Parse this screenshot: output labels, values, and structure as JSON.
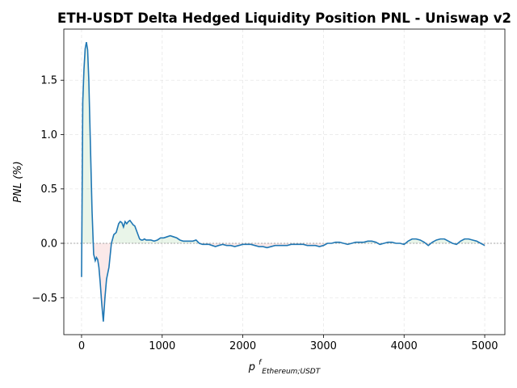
{
  "chart_data": {
    "type": "line",
    "title": "ETH-USDT Delta Hedged Liquidity Position PNL - Uniswap v2",
    "xlabel_main": "p",
    "xlabel_sup": "f",
    "xlabel_sub": "Ethereum;USDT",
    "ylabel": "PNL (%)",
    "xlim": [
      -220,
      5250
    ],
    "ylim": [
      -0.84,
      1.97
    ],
    "xticks": [
      0,
      1000,
      2000,
      3000,
      4000,
      5000
    ],
    "xtick_labels": [
      "0",
      "1000",
      "2000",
      "3000",
      "4000",
      "5000"
    ],
    "yticks": [
      -0.5,
      0.0,
      0.5,
      1.0,
      1.5
    ],
    "ytick_labels": [
      "−0.5",
      "0.0",
      "0.5",
      "1.0",
      "1.5"
    ],
    "grid": true,
    "zero_line": 0,
    "colors": {
      "line": "#1f77b4",
      "fill_positive": "#2ca02c",
      "fill_negative": "#d62728",
      "grid": "#b0b0b0",
      "zero_line": "#888888"
    },
    "series": [
      {
        "x": [
          0,
          15,
          30,
          45,
          60,
          75,
          90,
          110,
          130,
          150,
          170,
          185,
          200,
          215,
          230,
          250,
          270,
          290,
          310,
          340,
          370,
          400,
          430,
          460,
          480,
          500,
          520,
          540,
          560,
          580,
          600,
          620,
          640,
          660,
          680,
          700,
          720,
          740,
          760,
          780,
          800,
          830,
          860,
          900,
          940,
          980,
          1020,
          1060,
          1100,
          1140,
          1180,
          1220,
          1260,
          1300,
          1340,
          1380,
          1420,
          1460,
          1500,
          1540,
          1580,
          1620,
          1660,
          1700,
          1750,
          1800,
          1850,
          1900,
          1950,
          2000,
          2050,
          2100,
          2150,
          2200,
          2250,
          2300,
          2350,
          2400,
          2450,
          2500,
          2550,
          2600,
          2650,
          2700,
          2750,
          2800,
          2850,
          2900,
          2950,
          3000,
          3050,
          3100,
          3150,
          3200,
          3250,
          3300,
          3350,
          3400,
          3450,
          3500,
          3550,
          3600,
          3650,
          3700,
          3750,
          3800,
          3850,
          3900,
          3950,
          4000,
          4050,
          4100,
          4150,
          4200,
          4250,
          4300,
          4350,
          4400,
          4450,
          4500,
          4550,
          4600,
          4650,
          4700,
          4750,
          4800,
          4850,
          4900,
          4950,
          5000
        ],
        "y": [
          -0.31,
          1.3,
          1.6,
          1.79,
          1.85,
          1.78,
          1.5,
          0.9,
          0.3,
          -0.1,
          -0.16,
          -0.13,
          -0.15,
          -0.22,
          -0.35,
          -0.55,
          -0.72,
          -0.5,
          -0.33,
          -0.22,
          0.0,
          0.08,
          0.1,
          0.18,
          0.2,
          0.19,
          0.15,
          0.2,
          0.18,
          0.2,
          0.21,
          0.19,
          0.17,
          0.16,
          0.12,
          0.08,
          0.04,
          0.03,
          0.03,
          0.04,
          0.03,
          0.03,
          0.03,
          0.02,
          0.03,
          0.05,
          0.05,
          0.06,
          0.07,
          0.06,
          0.05,
          0.03,
          0.02,
          0.02,
          0.02,
          0.02,
          0.03,
          0.0,
          -0.01,
          -0.01,
          -0.01,
          -0.02,
          -0.03,
          -0.02,
          -0.01,
          -0.02,
          -0.02,
          -0.03,
          -0.02,
          -0.01,
          -0.01,
          -0.01,
          -0.02,
          -0.03,
          -0.03,
          -0.04,
          -0.03,
          -0.02,
          -0.02,
          -0.02,
          -0.02,
          -0.01,
          -0.01,
          -0.01,
          -0.01,
          -0.02,
          -0.02,
          -0.02,
          -0.03,
          -0.02,
          0.0,
          0.0,
          0.01,
          0.01,
          0.0,
          -0.01,
          0.0,
          0.01,
          0.01,
          0.01,
          0.02,
          0.02,
          0.01,
          -0.01,
          0.0,
          0.01,
          0.01,
          0.0,
          0.0,
          -0.01,
          0.02,
          0.04,
          0.04,
          0.03,
          0.01,
          -0.02,
          0.01,
          0.03,
          0.04,
          0.04,
          0.02,
          0.0,
          -0.01,
          0.02,
          0.04,
          0.04,
          0.03,
          0.02,
          0.0,
          -0.02
        ]
      }
    ]
  }
}
